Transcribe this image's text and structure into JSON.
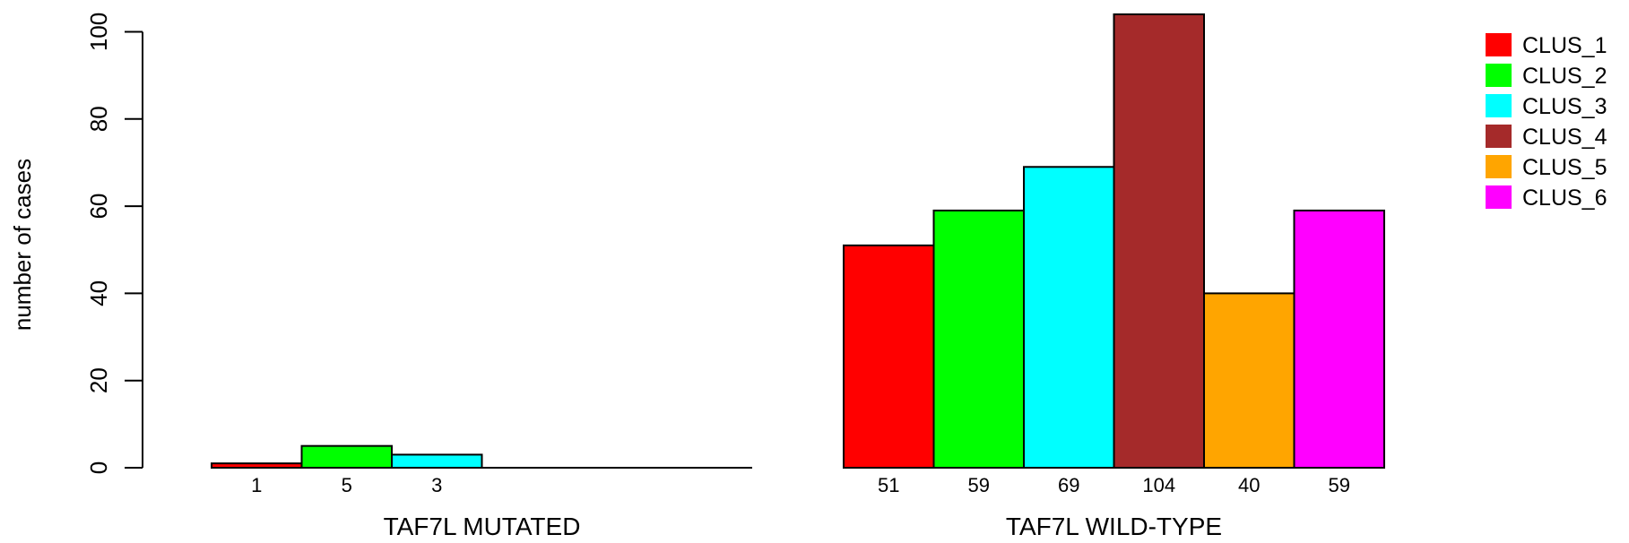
{
  "chart_data": {
    "type": "bar",
    "title": "",
    "ylabel": "number of cases",
    "ylim": [
      0,
      104
    ],
    "yticks": [
      0,
      20,
      40,
      60,
      80,
      100
    ],
    "grid": false,
    "legend_position": "top-right",
    "series": [
      {
        "name": "CLUS_1",
        "color": "#FF0000"
      },
      {
        "name": "CLUS_2",
        "color": "#00FF00"
      },
      {
        "name": "CLUS_3",
        "color": "#00FFFF"
      },
      {
        "name": "CLUS_4",
        "color": "#A52A2A"
      },
      {
        "name": "CLUS_5",
        "color": "#FFA500"
      },
      {
        "name": "CLUS_6",
        "color": "#FF00FF"
      }
    ],
    "groups": [
      {
        "label": "TAF7L MUTATED",
        "values": [
          1,
          5,
          3,
          0,
          0,
          0
        ],
        "value_labels": [
          "1",
          "5",
          "3",
          "",
          "",
          ""
        ]
      },
      {
        "label": "TAF7L WILD-TYPE",
        "values": [
          51,
          59,
          69,
          104,
          40,
          59
        ],
        "value_labels": [
          "51",
          "59",
          "69",
          "104",
          "40",
          "59"
        ]
      }
    ]
  }
}
